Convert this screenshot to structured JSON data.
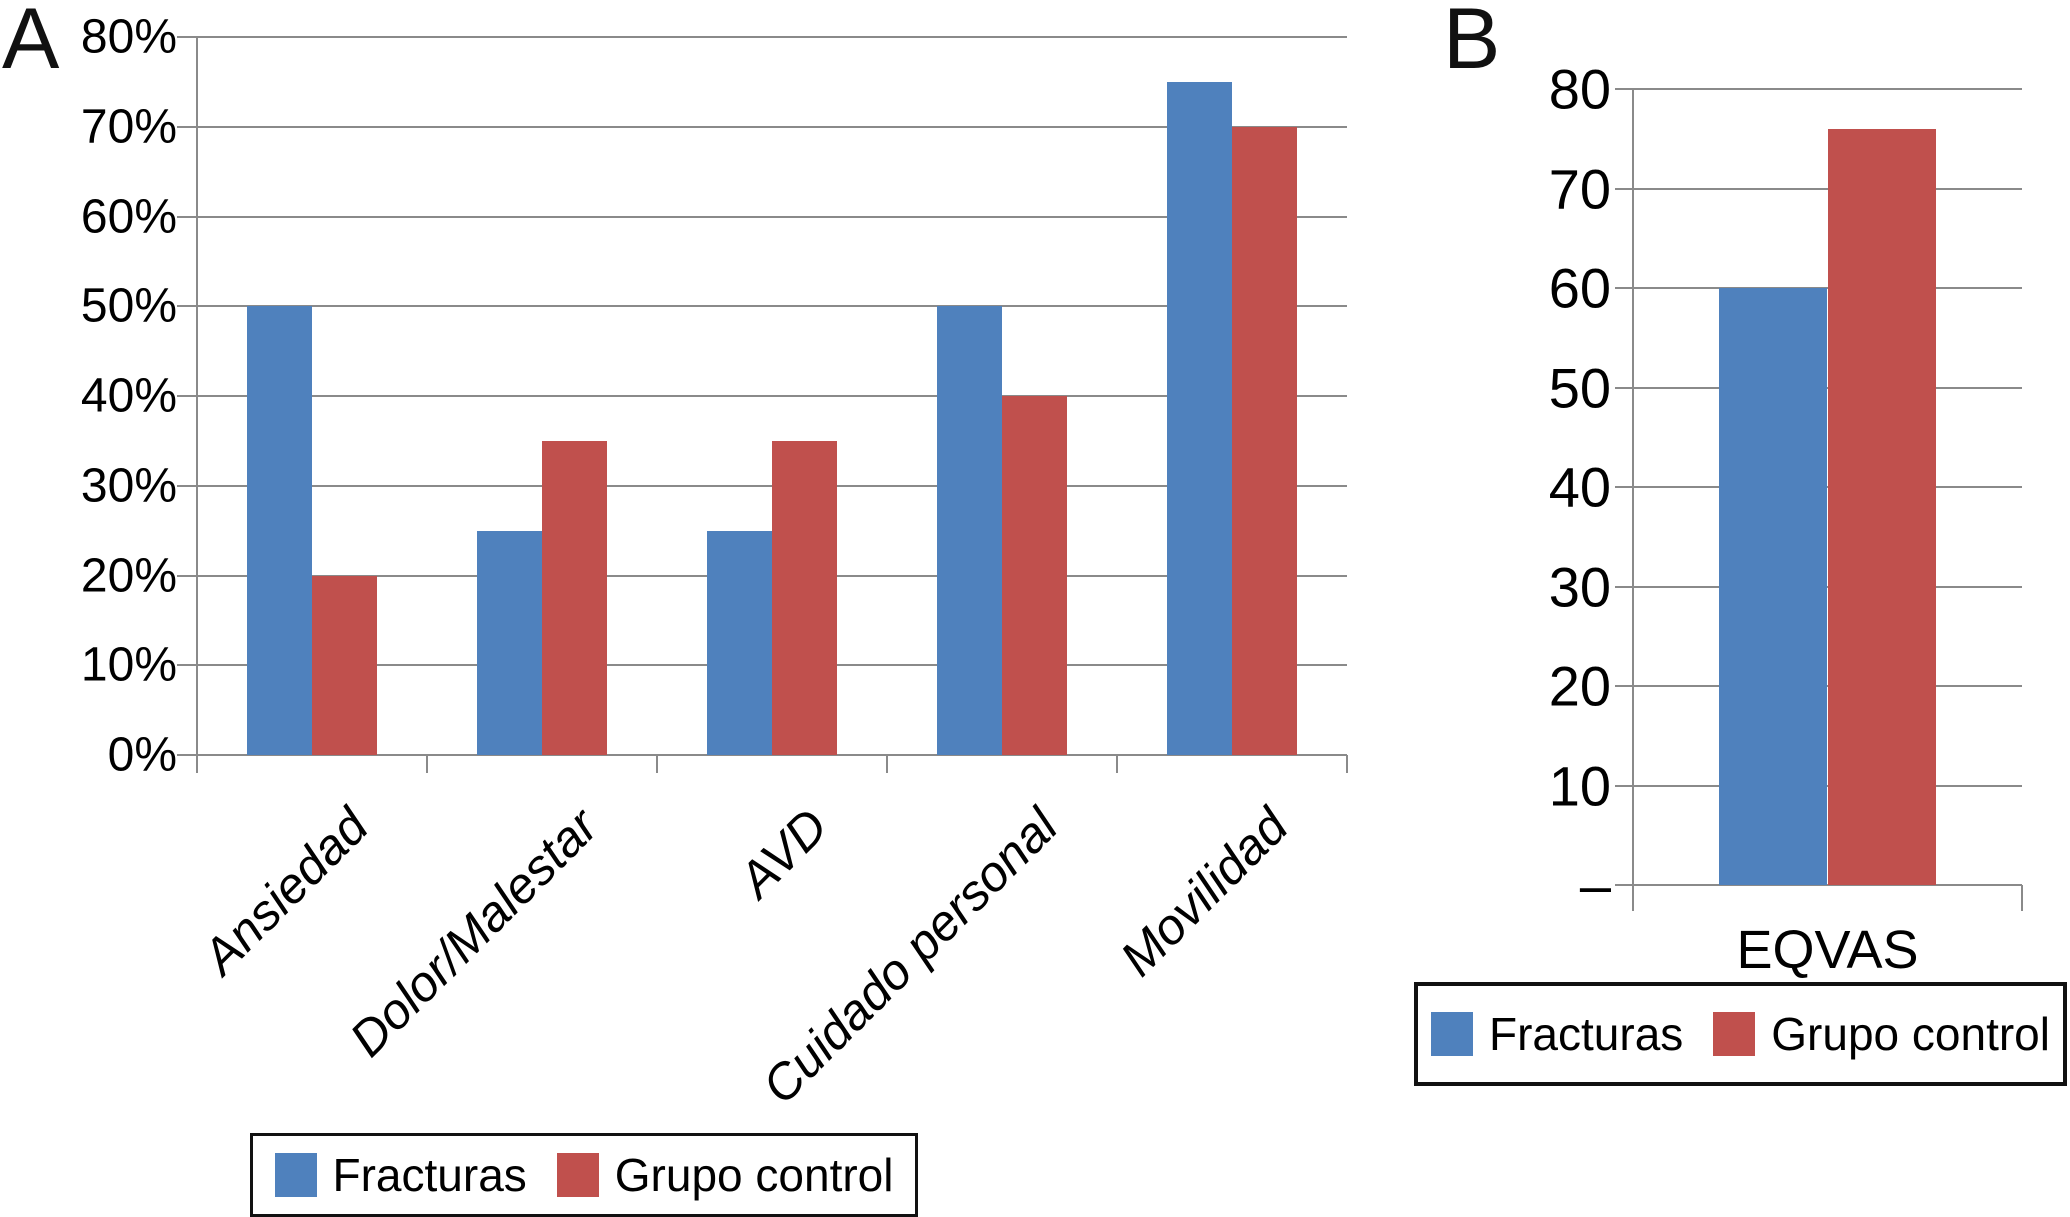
{
  "figure": {
    "background": "#ffffff",
    "grid_color": "#8a8a8a",
    "text_color": "#000000",
    "series_colors": {
      "fracturas": "#4F81BD",
      "grupo_control": "#C0504D"
    }
  },
  "panel_a": {
    "label": "A",
    "legend": {
      "items": [
        {
          "label": "Fracturas",
          "color": "#4F81BD"
        },
        {
          "label": "Grupo control",
          "color": "#C0504D"
        }
      ]
    }
  },
  "panel_b": {
    "label": "B",
    "legend": {
      "items": [
        {
          "label": "Fracturas",
          "color": "#4F81BD"
        },
        {
          "label": "Grupo control",
          "color": "#C0504D"
        }
      ]
    }
  },
  "chart_data": [
    {
      "id": "chart-a",
      "panel": "A",
      "type": "bar",
      "title": "",
      "xlabel": "",
      "ylabel": "",
      "categories": [
        "Ansiedad",
        "Dolor/Malestar",
        "AVD",
        "Cuidado personal",
        "Movilidad"
      ],
      "series": [
        {
          "name": "Fracturas",
          "color": "#4F81BD",
          "values": [
            50,
            25,
            25,
            50,
            75
          ]
        },
        {
          "name": "Grupo control",
          "color": "#C0504D",
          "values": [
            20,
            35,
            35,
            40,
            70
          ]
        }
      ],
      "ylim": [
        0,
        80
      ],
      "ytick_step": 10,
      "ytick_labels": [
        "0%",
        "10%",
        "20%",
        "30%",
        "40%",
        "50%",
        "60%",
        "70%",
        "80%"
      ],
      "grid": true,
      "legend_position": "bottom",
      "category_label_style": "italic-rotated-45"
    },
    {
      "id": "chart-b",
      "panel": "B",
      "type": "bar",
      "title": "",
      "xlabel": "",
      "ylabel": "",
      "categories": [
        "EQVAS"
      ],
      "series": [
        {
          "name": "Fracturas",
          "color": "#4F81BD",
          "values": [
            60
          ]
        },
        {
          "name": "Grupo control",
          "color": "#C0504D",
          "values": [
            76
          ]
        }
      ],
      "ylim": [
        0,
        80
      ],
      "ytick_step": 10,
      "ytick_labels": [
        "–",
        "10",
        "20",
        "30",
        "40",
        "50",
        "60",
        "70",
        "80"
      ],
      "grid": true,
      "legend_position": "bottom",
      "category_label_style": "horizontal"
    }
  ]
}
